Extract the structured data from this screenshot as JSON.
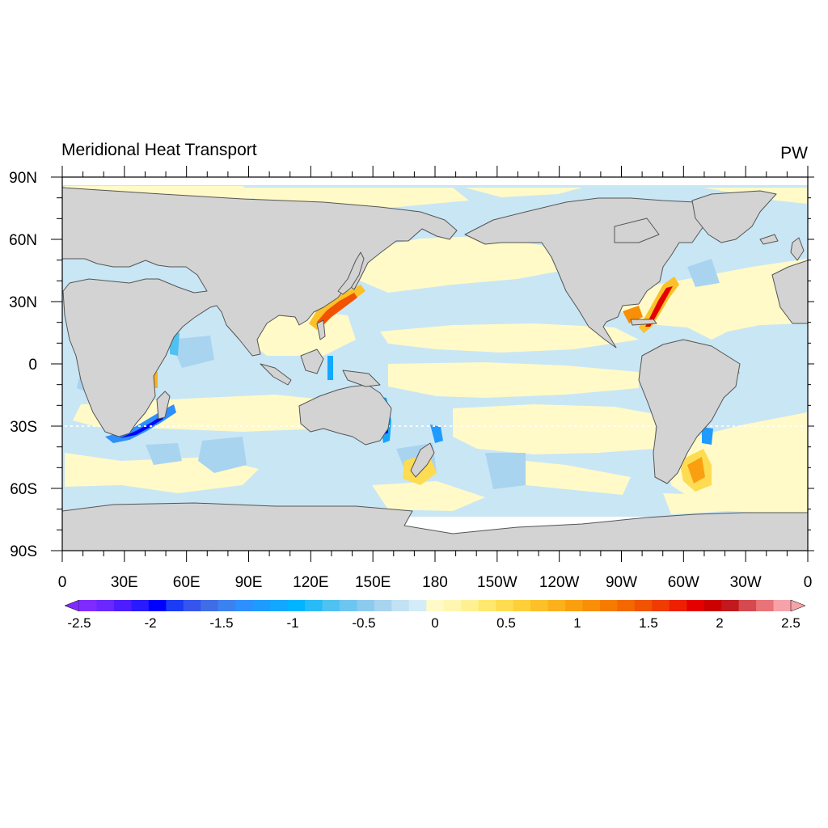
{
  "map": {
    "title": "Meridional Heat Transport",
    "units": "PW",
    "projection": "cylindrical equidistant",
    "central_longitude": 180,
    "lat_labels": [
      "90N",
      "60N",
      "30N",
      "0",
      "30S",
      "60S",
      "90S"
    ],
    "lon_labels": [
      "0",
      "30E",
      "60E",
      "90E",
      "120E",
      "150E",
      "180",
      "150W",
      "120W",
      "90W",
      "60W",
      "30W",
      "0"
    ]
  },
  "colors": {
    "land": "#d3d3d3",
    "coastline": "#555555",
    "no_data": "#ffffff",
    "frame": "#000000"
  },
  "colorbar": {
    "labels": [
      "-2.5",
      "-2",
      "-1.5",
      "-1",
      "-0.5",
      "0",
      "0.5",
      "1",
      "1.5",
      "2",
      "2.5"
    ],
    "min": -2.5,
    "max": 2.5,
    "colors": [
      "#7f2bff",
      "#6a27ff",
      "#4e1dff",
      "#2a1bff",
      "#0000ff",
      "#1a3cf5",
      "#3555ee",
      "#3f6de6",
      "#3b82ee",
      "#2e8fff",
      "#1e9bff",
      "#12a8ff",
      "#00b4ff",
      "#28bbf7",
      "#4fc2f1",
      "#6dc6f0",
      "#8ccaee",
      "#a9d4ef",
      "#c2e2f3",
      "#d3ecf8",
      "#fffac8",
      "#fff6b0",
      "#fff191",
      "#ffe86e",
      "#fedc52",
      "#fdd03a",
      "#fcc128",
      "#fbb11b",
      "#faa010",
      "#f88f07",
      "#f67c00",
      "#f46800",
      "#f25300",
      "#f03c00",
      "#ee2000",
      "#e50000",
      "#cc0000",
      "#c2191e",
      "#d6494e",
      "#e87378",
      "#f5a2a8"
    ]
  }
}
